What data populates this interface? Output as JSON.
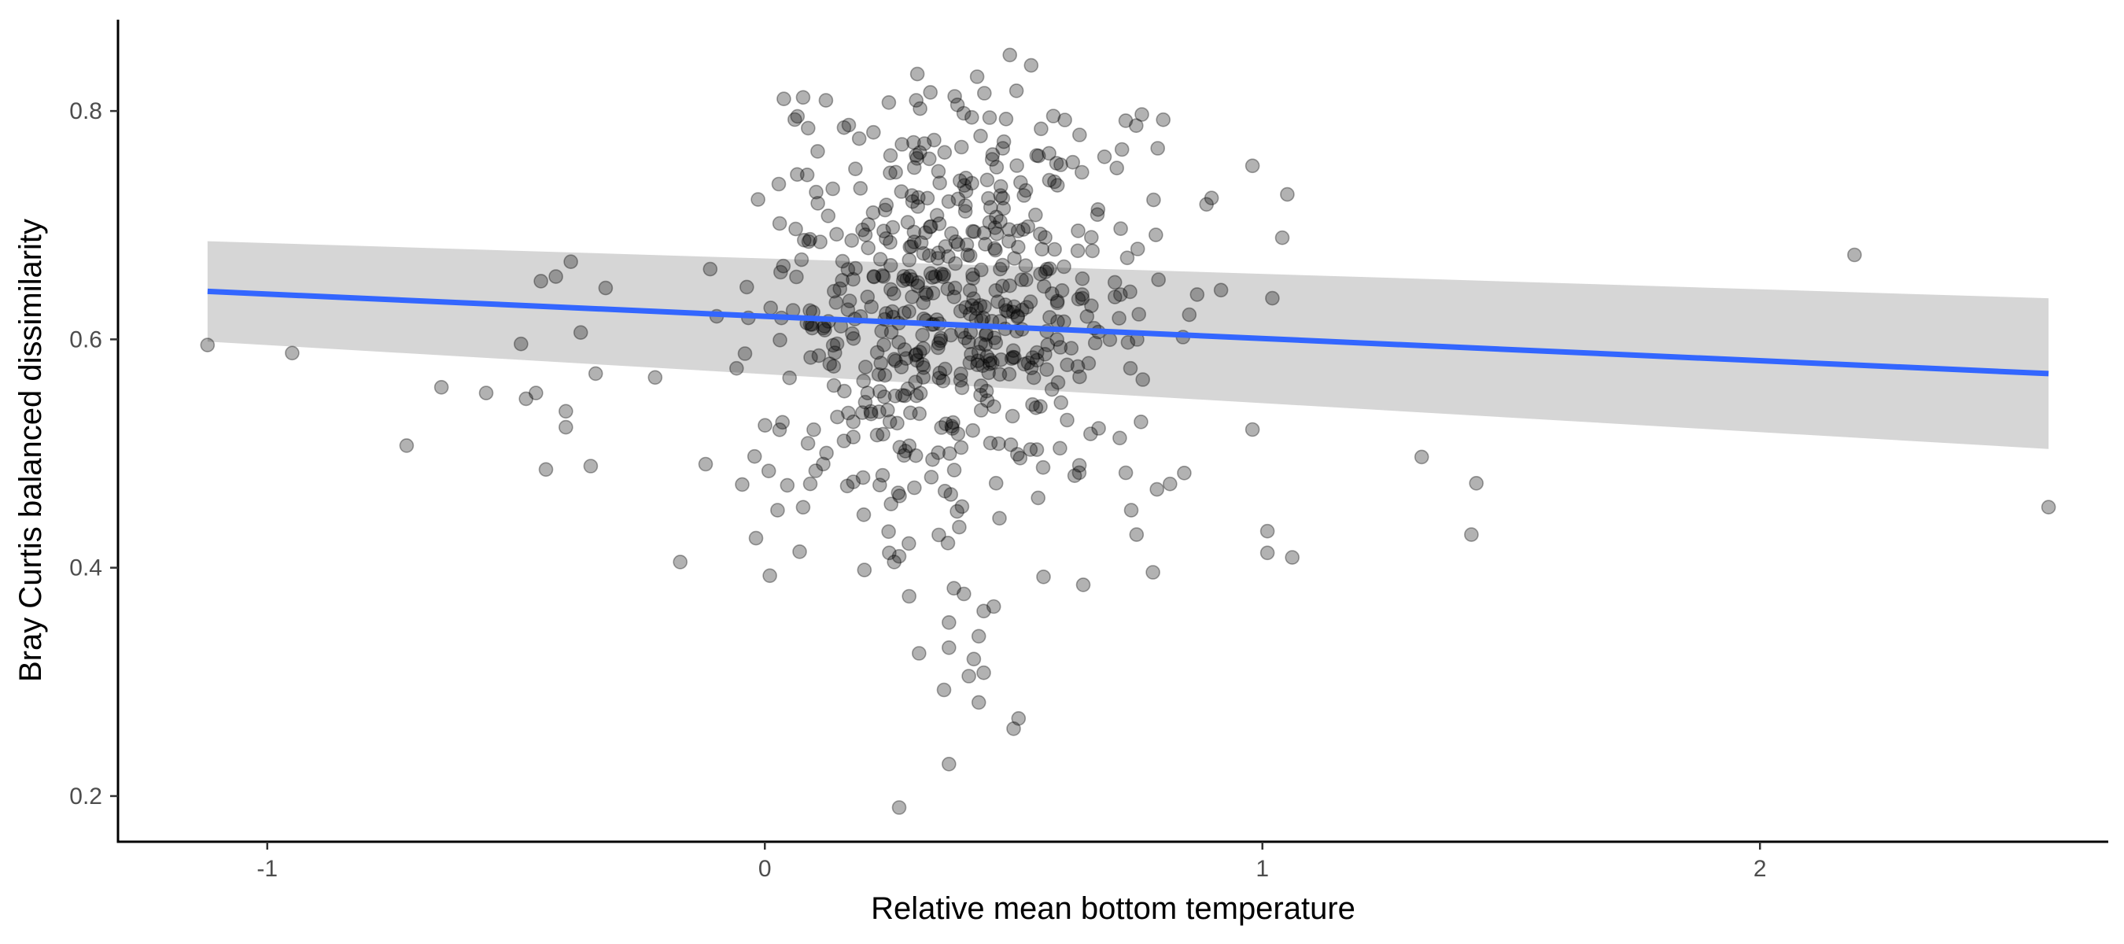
{
  "chart_data": {
    "type": "scatter",
    "title": "",
    "xlabel": "Relative mean bottom temperature",
    "ylabel": "Bray Curtis balanced dissimilarity",
    "xlim": [
      -1.3,
      2.7
    ],
    "ylim": [
      0.16,
      0.88
    ],
    "x_ticks": [
      -1,
      0,
      1,
      2
    ],
    "y_ticks": [
      0.2,
      0.4,
      0.6,
      0.8
    ],
    "x_tick_labels": [
      "-1",
      "0",
      "1",
      "2"
    ],
    "y_tick_labels": [
      "0.2",
      "0.4",
      "0.6",
      "0.8"
    ],
    "grid": false,
    "legend": "none",
    "colors": {
      "points": "#000000",
      "trend_line": "#3366ff",
      "confidence_band": "#cccccc",
      "axis": "#000000",
      "tick_text": "#4d4d4d"
    },
    "trend_line": {
      "x": [
        -1.12,
        2.58
      ],
      "y": [
        0.642,
        0.57
      ],
      "ci_lower": [
        0.598,
        0.504
      ],
      "ci_upper": [
        0.686,
        0.636
      ]
    },
    "outliers": [
      {
        "x": -1.12,
        "y": 0.595
      },
      {
        "x": -0.95,
        "y": 0.588
      },
      {
        "x": -0.72,
        "y": 0.507
      },
      {
        "x": -0.65,
        "y": 0.558
      },
      {
        "x": -0.56,
        "y": 0.553
      },
      {
        "x": -0.49,
        "y": 0.596
      },
      {
        "x": -0.48,
        "y": 0.548
      },
      {
        "x": -0.46,
        "y": 0.553
      },
      {
        "x": -0.45,
        "y": 0.651
      },
      {
        "x": -0.44,
        "y": 0.486
      },
      {
        "x": -0.42,
        "y": 0.655
      },
      {
        "x": -0.4,
        "y": 0.523
      },
      {
        "x": -0.4,
        "y": 0.537
      },
      {
        "x": -0.39,
        "y": 0.668
      },
      {
        "x": -0.37,
        "y": 0.606
      },
      {
        "x": -0.35,
        "y": 0.489
      },
      {
        "x": -0.34,
        "y": 0.57
      },
      {
        "x": -0.32,
        "y": 0.645
      },
      {
        "x": 0.98,
        "y": 0.752
      },
      {
        "x": 0.98,
        "y": 0.521
      },
      {
        "x": 1.01,
        "y": 0.432
      },
      {
        "x": 1.01,
        "y": 0.413
      },
      {
        "x": 1.02,
        "y": 0.636
      },
      {
        "x": 1.04,
        "y": 0.689
      },
      {
        "x": 1.05,
        "y": 0.727
      },
      {
        "x": 1.06,
        "y": 0.409
      },
      {
        "x": 1.32,
        "y": 0.497
      },
      {
        "x": 1.42,
        "y": 0.429
      },
      {
        "x": 1.43,
        "y": 0.474
      },
      {
        "x": 2.19,
        "y": 0.674
      },
      {
        "x": 2.58,
        "y": 0.453
      },
      {
        "x": 0.27,
        "y": 0.19
      },
      {
        "x": 0.37,
        "y": 0.228
      },
      {
        "x": 0.5,
        "y": 0.259
      },
      {
        "x": 0.51,
        "y": 0.268
      },
      {
        "x": 0.43,
        "y": 0.282
      },
      {
        "x": 0.36,
        "y": 0.293
      },
      {
        "x": 0.44,
        "y": 0.308
      },
      {
        "x": 0.41,
        "y": 0.305
      },
      {
        "x": 0.31,
        "y": 0.325
      },
      {
        "x": 0.42,
        "y": 0.32
      },
      {
        "x": 0.37,
        "y": 0.33
      },
      {
        "x": 0.43,
        "y": 0.34
      },
      {
        "x": 0.37,
        "y": 0.352
      },
      {
        "x": 0.44,
        "y": 0.362
      },
      {
        "x": 0.46,
        "y": 0.366
      },
      {
        "x": 0.29,
        "y": 0.375
      },
      {
        "x": 0.4,
        "y": 0.377
      },
      {
        "x": 0.38,
        "y": 0.382
      },
      {
        "x": 0.01,
        "y": 0.393
      },
      {
        "x": 0.2,
        "y": 0.398
      },
      {
        "x": 0.56,
        "y": 0.392
      },
      {
        "x": 0.78,
        "y": 0.396
      },
      {
        "x": 0.64,
        "y": 0.385
      },
      {
        "x": -0.17,
        "y": 0.405
      },
      {
        "x": 0.27,
        "y": 0.41
      },
      {
        "x": 0.26,
        "y": 0.405
      },
      {
        "x": 0.25,
        "y": 0.413
      },
      {
        "x": 0.07,
        "y": 0.414
      }
    ],
    "cluster": {
      "count": 560,
      "seed": 7,
      "x_center": 0.38,
      "x_sd": 0.2,
      "x_range": [
        -0.28,
        0.92
      ],
      "y_center": 0.625,
      "y_sd": 0.1,
      "y_range": [
        0.42,
        0.85
      ]
    }
  }
}
